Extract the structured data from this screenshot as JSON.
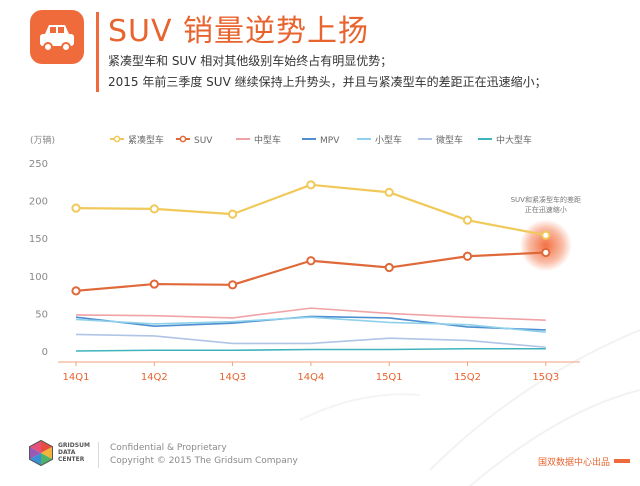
{
  "header": {
    "title": "SUV 销量逆势上扬",
    "line1": "紧凑型车和 SUV 相对其他级别车始终占有明显优势；",
    "line2": "2015 年前三季度 SUV 继续保持上升势头，并且与紧凑型车的差距正在迅速缩小；",
    "icon": "car-icon"
  },
  "chart_data": {
    "type": "line",
    "unit_label": "(万辆)",
    "categories": [
      "14Q1",
      "14Q2",
      "14Q3",
      "14Q4",
      "15Q1",
      "15Q2",
      "15Q3"
    ],
    "ylim": [
      0,
      250
    ],
    "yticks": [
      0,
      50,
      100,
      150,
      200,
      250
    ],
    "grid": false,
    "legend_position": "top",
    "series": [
      {
        "name": "紧凑型车",
        "color": "#f0c95a",
        "markers": true,
        "values": [
          190,
          189,
          182,
          221,
          211,
          174,
          154
        ]
      },
      {
        "name": "SUV",
        "color": "#e0693a",
        "markers": true,
        "values": [
          80,
          89,
          88,
          120,
          111,
          126,
          131
        ]
      },
      {
        "name": "中型车",
        "color": "#f0a3a6",
        "markers": false,
        "values": [
          48,
          47,
          44,
          57,
          50,
          45,
          41
        ]
      },
      {
        "name": "MPV",
        "color": "#4d8fcf",
        "markers": false,
        "values": [
          45,
          33,
          37,
          46,
          44,
          32,
          28
        ]
      },
      {
        "name": "小型车",
        "color": "#8fd0ea",
        "markers": false,
        "values": [
          42,
          36,
          39,
          45,
          38,
          35,
          25
        ]
      },
      {
        "name": "微型车",
        "color": "#b0c4e6",
        "markers": false,
        "values": [
          22,
          20,
          10,
          10,
          17,
          14,
          5
        ]
      },
      {
        "name": "中大型车",
        "color": "#3fb3bd",
        "markers": false,
        "values": [
          0,
          1,
          1,
          2,
          2,
          3,
          3
        ]
      }
    ],
    "annotation": {
      "text_line1": "SUV和紧凑型车的差距",
      "text_line2": "正在迅速缩小",
      "at_category": "15Q3",
      "color": "#f26a3a"
    }
  },
  "footer": {
    "brand": "GRIDSUM DATA CENTER",
    "confidential": "Confidential & Proprietary",
    "copyright": "Copyright © 2015 The Gridsum Company",
    "source": "国双数据中心出品",
    "logo": "gridsum-logo-icon"
  }
}
